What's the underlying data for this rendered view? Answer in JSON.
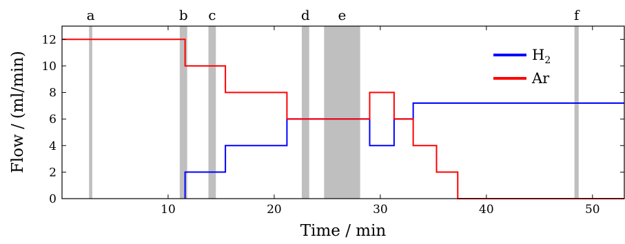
{
  "chart_data": {
    "type": "line",
    "title": "",
    "xlabel": "Time / min",
    "ylabel": "Flow / (ml/min)",
    "xlim": [
      0,
      53
    ],
    "ylim": [
      0,
      13
    ],
    "xticks": [
      10,
      20,
      30,
      40,
      50
    ],
    "yticks": [
      0,
      2,
      4,
      6,
      8,
      10,
      12
    ],
    "grid": false,
    "legend_position": "top-right",
    "shaded_regions": [
      {
        "label": "a",
        "x_start": 2.55,
        "x_end": 2.85
      },
      {
        "label": "b",
        "x_start": 11.1,
        "x_end": 11.8
      },
      {
        "label": "c",
        "x_start": 13.8,
        "x_end": 14.5
      },
      {
        "label": "d",
        "x_start": 22.6,
        "x_end": 23.3
      },
      {
        "label": "e",
        "x_start": 24.7,
        "x_end": 28.1
      },
      {
        "label": "f",
        "x_start": 48.3,
        "x_end": 48.7
      }
    ],
    "series": [
      {
        "name": "H",
        "name_subscript": "2",
        "color": "#0000ff",
        "points": [
          [
            11.6,
            0
          ],
          [
            11.6,
            2
          ],
          [
            15.4,
            2
          ],
          [
            15.4,
            4
          ],
          [
            21.2,
            4
          ],
          [
            21.2,
            6
          ],
          [
            29.0,
            6
          ],
          [
            29.0,
            4
          ],
          [
            31.3,
            4
          ],
          [
            31.3,
            6
          ],
          [
            33.1,
            6
          ],
          [
            33.1,
            7.2
          ],
          [
            53,
            7.2
          ]
        ]
      },
      {
        "name": "Ar",
        "name_subscript": "",
        "color": "#ff0000",
        "points": [
          [
            0,
            12
          ],
          [
            11.6,
            12
          ],
          [
            11.6,
            10
          ],
          [
            15.4,
            10
          ],
          [
            15.4,
            8
          ],
          [
            21.2,
            8
          ],
          [
            21.2,
            6
          ],
          [
            29.0,
            6
          ],
          [
            29.0,
            8
          ],
          [
            31.3,
            8
          ],
          [
            31.3,
            6
          ],
          [
            33.1,
            6
          ],
          [
            33.1,
            4
          ],
          [
            35.3,
            4
          ],
          [
            35.3,
            2
          ],
          [
            37.3,
            2
          ],
          [
            37.3,
            0
          ],
          [
            53,
            0
          ]
        ]
      }
    ]
  }
}
